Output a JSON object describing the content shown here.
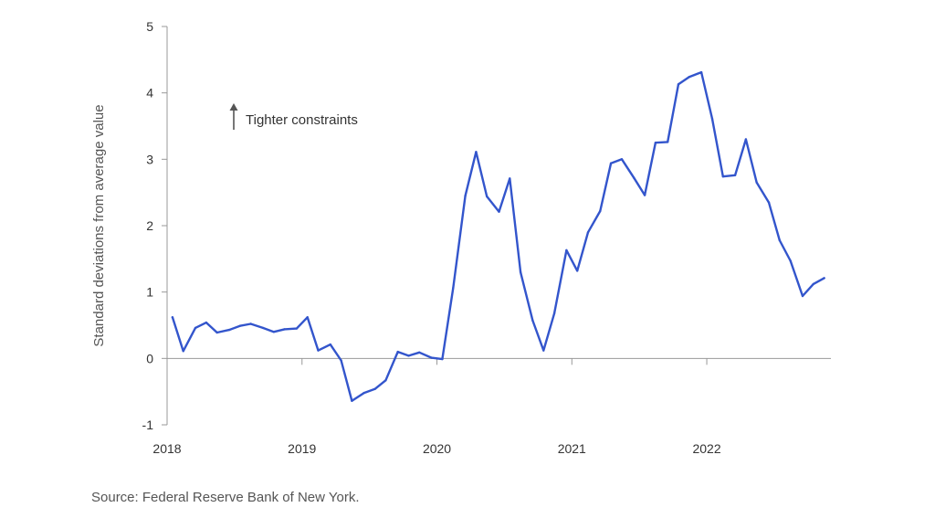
{
  "chart_data": {
    "type": "line",
    "ylabel": "Standard deviations from average value",
    "xlabel": "",
    "ylim": [
      -1,
      5
    ],
    "xlim": [
      2018.0,
      2022.92
    ],
    "y_ticks": [
      "5",
      "4",
      "3",
      "2",
      "1",
      "0",
      "-1"
    ],
    "x_ticks": [
      {
        "x": 2018,
        "label": "2018"
      },
      {
        "x": 2019,
        "label": "2019"
      },
      {
        "x": 2020,
        "label": "2020"
      },
      {
        "x": 2021,
        "label": "2021"
      },
      {
        "x": 2022,
        "label": "2022"
      }
    ],
    "grid": false,
    "line_color": "#3355cc",
    "series": [
      {
        "x": [
          2018.04,
          2018.12,
          2018.21,
          2018.29,
          2018.37,
          2018.46,
          2018.54,
          2018.62,
          2018.71,
          2018.79,
          2018.87,
          2018.96,
          2019.04,
          2019.12,
          2019.21,
          2019.29,
          2019.37,
          2019.46,
          2019.54,
          2019.62,
          2019.71,
          2019.79,
          2019.87,
          2019.96,
          2020.04,
          2020.12,
          2020.21,
          2020.29,
          2020.37,
          2020.46,
          2020.54,
          2020.62,
          2020.71,
          2020.79,
          2020.87,
          2020.96,
          2021.04,
          2021.12,
          2021.21,
          2021.29,
          2021.37,
          2021.46,
          2021.54,
          2021.62,
          2021.71,
          2021.79,
          2021.87,
          2021.96,
          2022.04,
          2022.12,
          2022.21,
          2022.29,
          2022.37,
          2022.46,
          2022.54,
          2022.62,
          2022.71,
          2022.79,
          2022.87
        ],
        "values": [
          0.62,
          0.11,
          0.46,
          0.54,
          0.39,
          0.43,
          0.49,
          0.52,
          0.46,
          0.4,
          0.44,
          0.45,
          0.62,
          0.12,
          0.21,
          -0.03,
          -0.64,
          -0.52,
          -0.46,
          -0.33,
          0.1,
          0.04,
          0.09,
          0.01,
          -0.01,
          1.06,
          2.45,
          3.11,
          2.44,
          2.21,
          2.71,
          1.3,
          0.57,
          0.12,
          0.68,
          1.63,
          1.32,
          1.9,
          2.22,
          2.94,
          3.0,
          2.72,
          2.46,
          3.25,
          3.26,
          4.13,
          4.24,
          4.31,
          3.61,
          2.74,
          2.76,
          3.3,
          2.65,
          2.35,
          1.78,
          1.47,
          0.94,
          1.12,
          1.21
        ]
      }
    ]
  },
  "annotation": {
    "arrow_icon": "up-arrow-icon",
    "text": "Tighter constraints"
  },
  "source": "Source: Federal Reserve Bank of New York."
}
